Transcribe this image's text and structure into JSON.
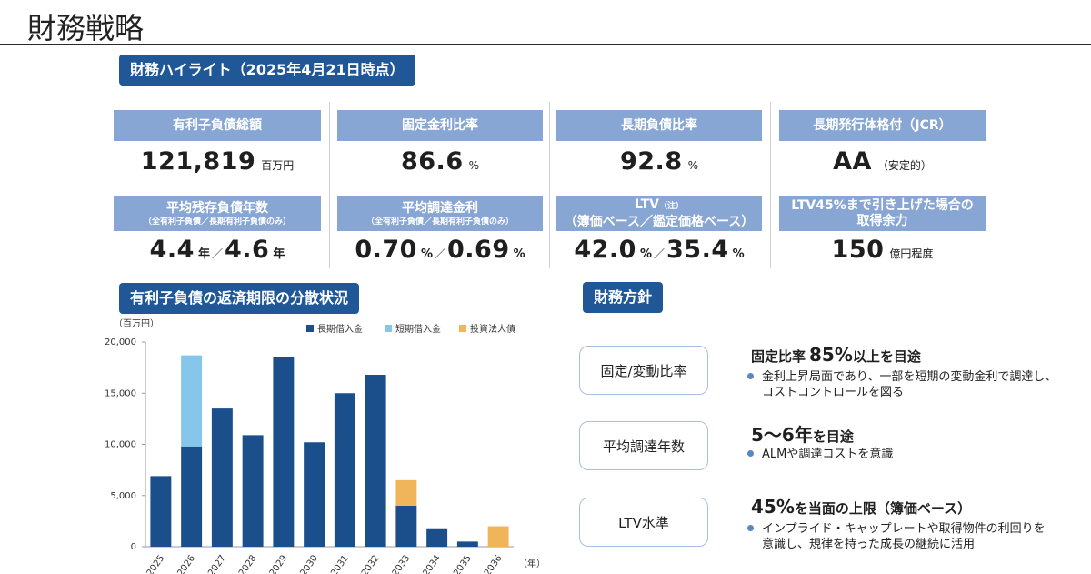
{
  "page": {
    "title": "財務戦略"
  },
  "highlights": {
    "section_title": "財務ハイライト（2025年4月21日時点）",
    "cards": [
      {
        "label": "有利子負債総額",
        "value": "121,819",
        "unit": "百万円"
      },
      {
        "label": "固定金利比率",
        "value": "86.6",
        "unit": "%"
      },
      {
        "label": "長期負債比率",
        "value": "92.8",
        "unit": "%"
      },
      {
        "label": "長期発行体格付（JCR）",
        "value": "AA",
        "unit": "（安定的）"
      },
      {
        "label": "平均残存負債年数",
        "sublabel": "（全有利子負債／長期有利子負債のみ）",
        "value1": "4.4",
        "unit1": "年",
        "sep": "／",
        "value2": "4.6",
        "unit2": "年"
      },
      {
        "label": "平均調達金利",
        "sublabel": "（全有利子負債／長期有利子負債のみ）",
        "value1": "0.70",
        "unit1": "%",
        "sep": "／",
        "value2": "0.69",
        "unit2": "%"
      },
      {
        "label": "LTV",
        "label_note": "（注）",
        "sublabel": "（簿価ベース／鑑定価格ベース）",
        "value1": "42.0",
        "unit1": "%",
        "sep": "／",
        "value2": "35.4",
        "unit2": "%"
      },
      {
        "label": "LTV45%まで引き上げた場合の",
        "label2": "取得余力",
        "value": "150",
        "unit": "億円程度"
      }
    ]
  },
  "maturity": {
    "section_title": "有利子負債の返済期限の分散状況"
  },
  "chart_data": {
    "type": "bar",
    "stacked": true,
    "unit_label": "（百万円）",
    "xunit_label": "（年）",
    "categories": [
      "2025",
      "2026",
      "2027",
      "2028",
      "2029",
      "2030",
      "2031",
      "2032",
      "2033",
      "2034",
      "2035",
      "2036"
    ],
    "series": [
      {
        "name": "長期借入金",
        "color": "#1a4f8c",
        "values": [
          6900,
          9800,
          13500,
          10900,
          18500,
          10200,
          15000,
          16800,
          4000,
          1800,
          500,
          0
        ]
      },
      {
        "name": "短期借入金",
        "color": "#85c6ea",
        "values": [
          0,
          8900,
          0,
          0,
          0,
          0,
          0,
          0,
          0,
          0,
          0,
          0
        ]
      },
      {
        "name": "投資法人債",
        "color": "#f0b45a",
        "values": [
          0,
          0,
          0,
          0,
          0,
          0,
          0,
          0,
          2500,
          0,
          0,
          2000
        ]
      }
    ],
    "ylim": [
      0,
      20000
    ],
    "yticks": [
      "0",
      "5,000",
      "10,000",
      "15,000",
      "20,000"
    ],
    "ytick_values": [
      0,
      5000,
      10000,
      15000,
      20000
    ],
    "legend_position": "top"
  },
  "policy": {
    "section_title": "財務方針",
    "items": [
      {
        "box": "固定/変動比率",
        "head_pre": "固定比率",
        "head_big": "85%",
        "head_post": "以上を目途",
        "bullet": [
          "金利上昇局面であり、一部を短期の変動金利で調達し、",
          "コストコントロールを図る"
        ]
      },
      {
        "box": "平均調達年数",
        "head_pre": "",
        "head_big": "5～6年",
        "head_post": "を目途",
        "bullet": [
          "ALMや調達コストを意識"
        ]
      },
      {
        "box": "LTV水準",
        "head_pre": "",
        "head_big": "45%",
        "head_post": "を当面の上限（簿価ベース）",
        "bullet": [
          "インプライド・キャップレートや取得物件の利回りを",
          "意識し、規律を持った成長の継続に活用"
        ]
      }
    ]
  }
}
